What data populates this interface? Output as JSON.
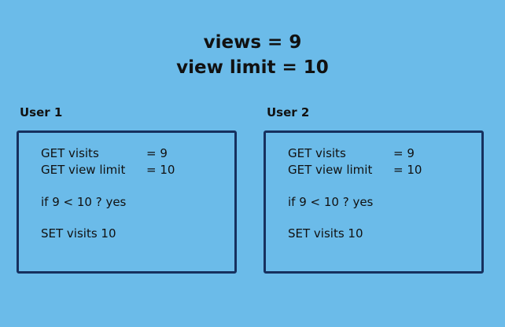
{
  "header": {
    "line1": "views = 9",
    "line2": "view limit = 10"
  },
  "users": [
    {
      "label": "User 1",
      "lines": [
        {
          "text": "GET visits",
          "value": "= 9"
        },
        {
          "text": "GET view limit",
          "value": "= 10"
        },
        {
          "text": "if 9 < 10 ? yes"
        },
        {
          "text": "SET visits 10"
        }
      ]
    },
    {
      "label": "User 2",
      "lines": [
        {
          "text": "GET visits",
          "value": "= 9"
        },
        {
          "text": "GET view limit",
          "value": "= 10"
        },
        {
          "text": "if 9 < 10 ? yes"
        },
        {
          "text": "SET visits 10"
        }
      ]
    }
  ],
  "colors": {
    "background": "#6bbbe9",
    "box_border": "#16305e",
    "text": "#111111"
  }
}
